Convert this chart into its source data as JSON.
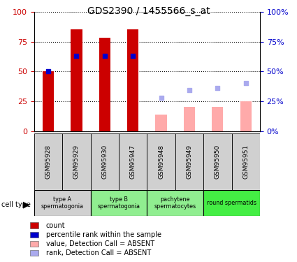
{
  "title": "GDS2390 / 1455566_s_at",
  "samples": [
    "GSM95928",
    "GSM95929",
    "GSM95930",
    "GSM95947",
    "GSM95948",
    "GSM95949",
    "GSM95950",
    "GSM95951"
  ],
  "bar_heights": [
    50,
    85,
    78,
    85,
    null,
    null,
    null,
    null
  ],
  "bar_color_present": "#cc0000",
  "bar_color_absent": "#ffaaaa",
  "absent_bar_heights": [
    null,
    null,
    null,
    null,
    14,
    20,
    20,
    25
  ],
  "blue_dots_present": [
    50,
    63,
    63,
    63,
    null,
    null,
    null,
    null
  ],
  "blue_dots_absent": [
    null,
    null,
    null,
    null,
    28,
    34,
    36,
    40
  ],
  "blue_dot_color_present": "#0000cc",
  "blue_dot_color_absent": "#aaaaee",
  "cell_groups": [
    {
      "label": "type A\nspermatogonia",
      "start": 0,
      "end": 2,
      "color": "#d0d0d0"
    },
    {
      "label": "type B\nspermatogonia",
      "start": 2,
      "end": 4,
      "color": "#90ee90"
    },
    {
      "label": "pachytene\nspermatocytes",
      "start": 4,
      "end": 6,
      "color": "#90ee90"
    },
    {
      "label": "round spermatids",
      "start": 6,
      "end": 8,
      "color": "#44ee44"
    }
  ],
  "ylim": [
    0,
    100
  ],
  "yticks": [
    0,
    25,
    50,
    75,
    100
  ],
  "left_tick_color": "#cc0000",
  "right_tick_color": "#0000cc",
  "legend_items": [
    {
      "color": "#cc0000",
      "label": "count"
    },
    {
      "color": "#0000cc",
      "label": "percentile rank within the sample"
    },
    {
      "color": "#ffaaaa",
      "label": "value, Detection Call = ABSENT"
    },
    {
      "color": "#aaaaee",
      "label": "rank, Detection Call = ABSENT"
    }
  ]
}
